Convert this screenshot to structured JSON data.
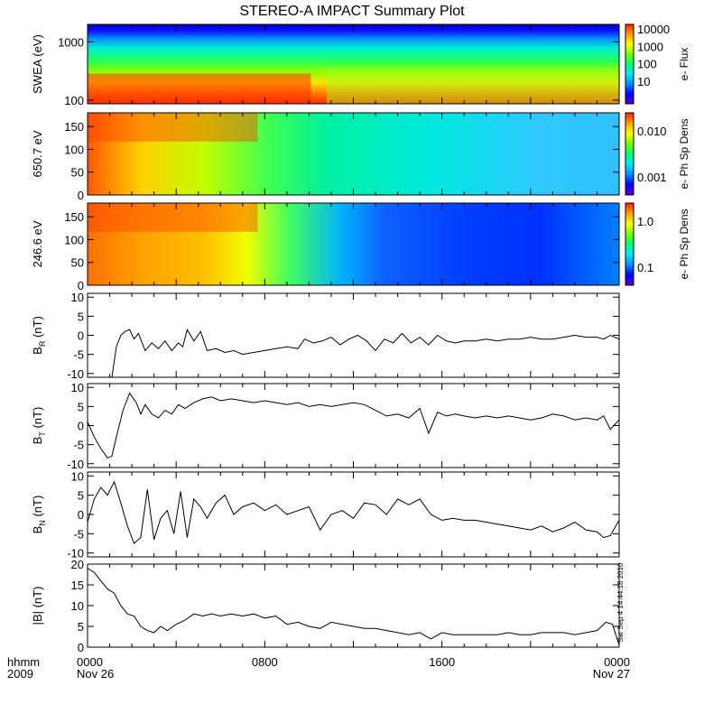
{
  "title": "STEREO-A IMPACT Summary Plot",
  "footer": {
    "label_top": "hhmm",
    "label_bottom": "2009",
    "timestamp": "Sat Sep  4 14:44:18 2010"
  },
  "colors": {
    "rainbow": [
      "#6000c0",
      "#0000ff",
      "#0090ff",
      "#00e8ff",
      "#00ff70",
      "#70ff00",
      "#ffff00",
      "#ffa000",
      "#ff2000"
    ],
    "line": "#000000"
  },
  "chart_data": [
    {
      "type": "heatmap",
      "id": "swea",
      "ylabel": "SWEA (eV)",
      "yscale": "log",
      "ylim": [
        90,
        2000
      ],
      "yticks": [
        "1000",
        "100"
      ],
      "colorbar": {
        "label": "e- Flux",
        "ticks": [
          "10000",
          "1000",
          "100",
          "10"
        ]
      },
      "description_levels": "high flux below ~300 eV, decreasing with energy; reduced low-energy flux after ~1000"
    },
    {
      "type": "heatmap",
      "id": "pad650",
      "ylabel": "650.7 eV",
      "ylim": [
        0,
        180
      ],
      "yticks": [
        "150",
        "100",
        "50",
        "0"
      ],
      "colorbar": {
        "label": "e- Ph Sp Dens",
        "ticks": [
          "0.010",
          "0.001"
        ]
      }
    },
    {
      "type": "heatmap",
      "id": "pad246",
      "ylabel": "246.6 eV",
      "ylim": [
        0,
        180
      ],
      "yticks": [
        "150",
        "100",
        "50",
        "0"
      ],
      "colorbar": {
        "label": "e- Ph Sp Dens",
        "ticks": [
          "1.0",
          "0.1"
        ]
      }
    },
    {
      "type": "line",
      "id": "br",
      "ylabel": "B",
      "ylabel_sub": "R",
      "ylabel_unit": "(nT)",
      "ylim": [
        -11,
        11
      ],
      "yticks": [
        "10",
        "5",
        "0",
        "-5",
        "-10"
      ],
      "x": [
        0,
        1.1,
        1.3,
        1.5,
        1.7,
        1.9,
        2.1,
        2.3,
        2.6,
        2.9,
        3.2,
        3.5,
        3.8,
        4.1,
        4.3,
        4.5,
        4.8,
        5.1,
        5.4,
        5.8,
        6.2,
        6.6,
        7.0,
        7.5,
        8.0,
        8.5,
        9.0,
        9.5,
        9.8,
        10.2,
        10.6,
        11.0,
        11.4,
        11.8,
        12.2,
        12.6,
        13.0,
        13.4,
        13.8,
        14.2,
        14.6,
        15.0,
        15.4,
        15.8,
        16.2,
        16.6,
        17.0,
        17.5,
        18.0,
        18.5,
        19.0,
        19.5,
        20.0,
        20.5,
        21.0,
        21.5,
        22.0,
        22.5,
        23.0,
        23.3,
        23.6,
        24.0
      ],
      "y": [
        -11,
        -11,
        -3,
        0,
        1,
        1.5,
        -1,
        0.5,
        -4,
        -2,
        -3.5,
        -1.5,
        -4,
        -2,
        -3,
        1.5,
        -1.5,
        1,
        -4,
        -3.5,
        -4.5,
        -4,
        -5,
        -4.5,
        -4,
        -3.5,
        -3,
        -3.5,
        -1,
        -2,
        -1.5,
        -0.5,
        -2.5,
        -1,
        0,
        -1.5,
        -4,
        -1,
        -2,
        0.5,
        -2,
        -0.5,
        -2.5,
        0,
        -1.5,
        -2,
        -1.5,
        -1.5,
        -1,
        -1.5,
        -1,
        -1,
        -0.5,
        -1,
        -1,
        -0.5,
        0,
        -0.5,
        -0.5,
        -1,
        0,
        -1
      ]
    },
    {
      "type": "line",
      "id": "bt",
      "ylabel": "B",
      "ylabel_sub": "T",
      "ylabel_unit": "(nT)",
      "ylim": [
        -11,
        11
      ],
      "yticks": [
        "10",
        "5",
        "0",
        "-5",
        "-10"
      ],
      "x": [
        0,
        0.3,
        0.6,
        0.9,
        1.1,
        1.3,
        1.6,
        1.9,
        2.2,
        2.4,
        2.6,
        2.9,
        3.2,
        3.5,
        3.8,
        4.1,
        4.4,
        4.8,
        5.2,
        5.6,
        6.0,
        6.5,
        7.0,
        7.5,
        8.0,
        8.5,
        9.0,
        9.5,
        10.0,
        10.5,
        11.0,
        11.5,
        12.0,
        12.5,
        13.0,
        13.5,
        14.0,
        14.5,
        15.0,
        15.4,
        15.8,
        16.2,
        16.6,
        17.0,
        17.5,
        18.0,
        18.5,
        19.0,
        19.5,
        20.0,
        20.5,
        21.0,
        21.5,
        22.0,
        22.5,
        23.0,
        23.3,
        23.6,
        24.0
      ],
      "y": [
        1,
        -3,
        -6,
        -8.5,
        -8,
        -3,
        4,
        8.5,
        6,
        3,
        5.5,
        3,
        2,
        4,
        3,
        5.5,
        4.5,
        6,
        7,
        7.5,
        6.5,
        7,
        6.5,
        6,
        6.5,
        6,
        5.5,
        6,
        5,
        5.5,
        5,
        5.5,
        6,
        5.5,
        4,
        2.5,
        3,
        2,
        4.5,
        -2,
        3.5,
        2.5,
        3,
        2.5,
        2,
        2.5,
        2,
        2.5,
        2,
        1.5,
        2,
        3,
        2.5,
        1.5,
        2,
        1.5,
        2.5,
        -1,
        1.5
      ]
    },
    {
      "type": "line",
      "id": "bn",
      "ylabel": "B",
      "ylabel_sub": "N",
      "ylabel_unit": "(nT)",
      "ylim": [
        -11,
        11
      ],
      "yticks": [
        "10",
        "5",
        "0",
        "-5",
        "-10"
      ],
      "x": [
        0,
        0.3,
        0.6,
        0.9,
        1.2,
        1.5,
        1.8,
        2.1,
        2.4,
        2.7,
        3.0,
        3.3,
        3.6,
        3.9,
        4.2,
        4.5,
        4.8,
        5.1,
        5.4,
        5.8,
        6.2,
        6.6,
        7.0,
        7.5,
        8.0,
        8.5,
        9.0,
        9.5,
        10.0,
        10.5,
        11.0,
        11.5,
        12.0,
        12.5,
        13.0,
        13.5,
        14.0,
        14.5,
        15.0,
        15.5,
        16.0,
        16.5,
        17.0,
        17.5,
        18.0,
        18.5,
        19.0,
        19.5,
        20.0,
        20.5,
        21.0,
        21.5,
        22.0,
        22.5,
        23.0,
        23.3,
        23.6,
        24.0
      ],
      "y": [
        -2,
        4,
        7,
        5,
        8.5,
        3,
        -3,
        -7.5,
        -6,
        6.5,
        -6.5,
        -1,
        1,
        -5,
        6,
        -6,
        4,
        2,
        -1,
        3,
        5,
        0,
        2,
        3,
        1,
        2.5,
        0,
        1,
        2,
        -4,
        0,
        1,
        -1,
        3,
        2.5,
        0,
        4,
        2.5,
        4,
        0,
        -1.5,
        -1,
        -1.5,
        -1.5,
        -2,
        -2.5,
        -3,
        -3.5,
        -4,
        -3,
        -4.5,
        -3.5,
        -2,
        -4,
        -4.5,
        -6,
        -5.5,
        -1.5
      ]
    },
    {
      "type": "line",
      "id": "bmag",
      "ylabel": "|B| (nT)",
      "ylim": [
        0,
        20
      ],
      "yticks": [
        "20",
        "15",
        "10",
        "5",
        "0"
      ],
      "x": [
        0,
        0.3,
        0.6,
        0.9,
        1.2,
        1.5,
        1.8,
        2.1,
        2.4,
        2.7,
        3.0,
        3.3,
        3.6,
        4.0,
        4.4,
        4.8,
        5.2,
        5.6,
        6.0,
        6.5,
        7.0,
        7.5,
        8.0,
        8.5,
        9.0,
        9.5,
        10.0,
        10.5,
        11.0,
        11.5,
        12.0,
        12.5,
        13.0,
        13.5,
        14.0,
        14.5,
        15.0,
        15.5,
        16.0,
        16.5,
        17.0,
        17.5,
        18.0,
        18.5,
        19.0,
        19.5,
        20.0,
        20.5,
        21.0,
        21.5,
        22.0,
        22.5,
        23.0,
        23.4,
        23.7,
        24.0
      ],
      "y": [
        19,
        18,
        16,
        14,
        13,
        10,
        8,
        7.5,
        5,
        4,
        3.5,
        5,
        4,
        5.5,
        6.5,
        8,
        7.5,
        8,
        7.5,
        8,
        7.5,
        8,
        7,
        7.5,
        5.5,
        6,
        5,
        4.5,
        6,
        5.5,
        5,
        4.5,
        4.5,
        4,
        3.5,
        3,
        3.5,
        2,
        3.5,
        3,
        3,
        3,
        3,
        3,
        3.5,
        3,
        3,
        3.5,
        3.5,
        3.5,
        3,
        3.5,
        4,
        6,
        5.5,
        0.5
      ]
    }
  ],
  "xaxis": {
    "range_hours": [
      0,
      24
    ],
    "ticks": [
      {
        "h": 0,
        "top": "0000",
        "bottom": "Nov 26"
      },
      {
        "h": 8,
        "top": "0800",
        "bottom": ""
      },
      {
        "h": 16,
        "top": "1600",
        "bottom": ""
      },
      {
        "h": 24,
        "top": "0000",
        "bottom": "Nov 27"
      }
    ]
  }
}
